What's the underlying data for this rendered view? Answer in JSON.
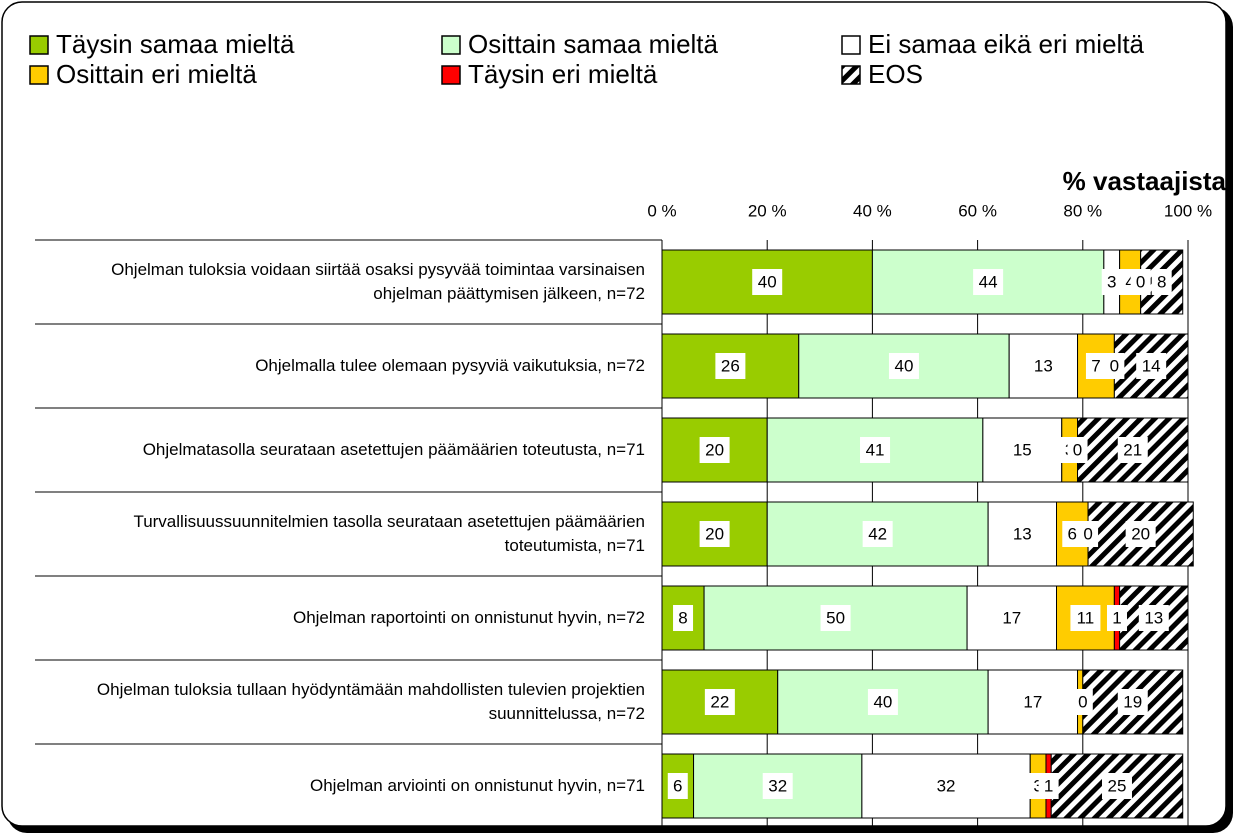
{
  "chart_data": {
    "type": "stacked-bar-horizontal",
    "axis_label": "% vastaajista",
    "categories": [
      "Ohjelman tuloksia voidaan siirtää osaksi pysyvää toimintaa varsinaisen ohjelman päättymisen jälkeen, n=72",
      "Ohjelmalla tulee olemaan pysyviä vaikutuksia, n=72",
      "Ohjelmatasolla seurataan asetettujen päämäärien toteutusta, n=71",
      "Turvallisuussuunnitelmien tasolla seurataan asetettujen päämäärien toteutumista, n=71",
      "Ohjelman raportointi on onnistunut hyvin, n=72",
      "Ohjelman tuloksia tullaan hyödyntämään mahdollisten tulevien projektien suunnittelussa, n=72",
      "Ohjelman arviointi on onnistunut hyvin, n=71"
    ],
    "series": [
      {
        "name": "Täysin samaa mieltä",
        "color": "#99cc00",
        "values": [
          40,
          26,
          20,
          20,
          8,
          22,
          6
        ]
      },
      {
        "name": "Osittain samaa mieltä",
        "color": "#ccffcc",
        "values": [
          44,
          40,
          41,
          42,
          50,
          40,
          32
        ]
      },
      {
        "name": "Ei samaa eikä eri mieltä",
        "color": "#ffffff",
        "values": [
          3,
          13,
          15,
          13,
          17,
          17,
          32
        ]
      },
      {
        "name": "Osittain eri mieltä",
        "color": "#ffcc00",
        "values": [
          4,
          7,
          3,
          6,
          11,
          1,
          3
        ]
      },
      {
        "name": "Täysin eri mieltä",
        "color": "#ff0000",
        "values": [
          0,
          0,
          0,
          0,
          1,
          0,
          1
        ]
      },
      {
        "name": "EOS",
        "color": "#000000",
        "pattern": "hatch",
        "values": [
          8,
          14,
          21,
          20,
          13,
          19,
          25
        ]
      }
    ],
    "xlim": [
      0,
      100
    ],
    "xticks": [
      {
        "value": 0,
        "label": "0 %"
      },
      {
        "value": 20,
        "label": "20 %"
      },
      {
        "value": 40,
        "label": "40 %"
      },
      {
        "value": 60,
        "label": "60 %"
      },
      {
        "value": 80,
        "label": "80 %"
      },
      {
        "value": 100,
        "label": "100 %"
      }
    ],
    "grid": true,
    "legend": "top"
  }
}
